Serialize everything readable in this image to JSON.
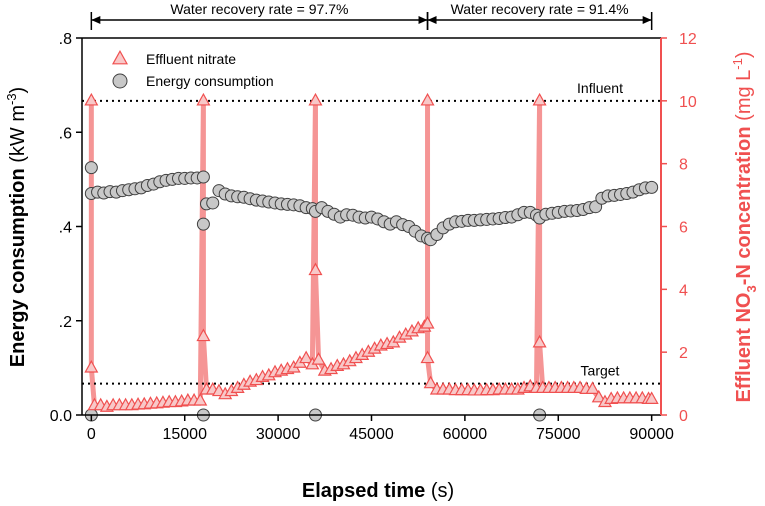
{
  "chart_data": {
    "type": "scatter",
    "xlabel": "Elapsed time",
    "xlabel_unit": "(s)",
    "ylabel_left": {
      "main": "Energy consumption",
      "unit_pre": "(kW m",
      "unit_sup": "-3",
      "unit_post": ")"
    },
    "ylabel_right": {
      "main": "Effluent NO",
      "sub": "3",
      "mid": "-N concentration",
      "unit_pre": "(mg L",
      "unit_sup": "-1",
      "unit_post": ")"
    },
    "xlim": [
      -1500,
      91500
    ],
    "ylim_left": [
      0,
      0.8
    ],
    "ylim_right": [
      0,
      12
    ],
    "x_ticks": [
      0,
      15000,
      30000,
      45000,
      60000,
      75000,
      90000
    ],
    "x_tick_labels": [
      "0",
      "15000",
      "30000",
      "45000",
      "60000",
      "75000",
      "90000"
    ],
    "y_left_ticks": [
      0,
      0.2,
      0.4,
      0.6,
      0.8
    ],
    "y_left_tick_labels": [
      "0.0",
      ".2",
      ".4",
      ".6",
      ".8"
    ],
    "y_right_ticks": [
      0,
      2,
      4,
      6,
      8,
      10,
      12
    ],
    "y_right_tick_labels": [
      "0",
      "2",
      "4",
      "6",
      "8",
      "10",
      "12"
    ],
    "reference_lines": [
      {
        "label": "Influent",
        "axis": "right",
        "y": 10
      },
      {
        "label": "Target",
        "axis": "right",
        "y": 1
      }
    ],
    "intervals": [
      {
        "label": "Water recovery rate = 97.7%",
        "x_start": 0,
        "x_end": 54000
      },
      {
        "label": "Water recovery rate = 91.4%",
        "x_start": 54000,
        "x_end": 90000
      }
    ],
    "legend": {
      "position": "top-left",
      "entries": [
        "Effluent nitrate",
        "Energy consumption"
      ]
    },
    "colors": {
      "nitrate": "#f05050",
      "nitrate_fill": "#f8c8c8",
      "nitrate_line": "#f48a8a",
      "energy_fill": "#c8c8c8",
      "energy_edge": "#404040"
    },
    "series": [
      {
        "name": "Energy consumption",
        "axis": "left",
        "marker": "circle",
        "points": [
          [
            0,
            0.0
          ],
          [
            0,
            0.525
          ],
          [
            0,
            0.47
          ],
          [
            1000,
            0.473
          ],
          [
            2000,
            0.471
          ],
          [
            3000,
            0.474
          ],
          [
            4000,
            0.473
          ],
          [
            5000,
            0.476
          ],
          [
            6000,
            0.478
          ],
          [
            7000,
            0.48
          ],
          [
            8000,
            0.482
          ],
          [
            9000,
            0.487
          ],
          [
            10000,
            0.49
          ],
          [
            11000,
            0.495
          ],
          [
            12000,
            0.498
          ],
          [
            13000,
            0.5
          ],
          [
            14000,
            0.502
          ],
          [
            15000,
            0.502
          ],
          [
            16000,
            0.503
          ],
          [
            17000,
            0.503
          ],
          [
            18000,
            0.505
          ],
          [
            18000,
            0.0
          ],
          [
            18000,
            0.405
          ],
          [
            18500,
            0.448
          ],
          [
            19500,
            0.45
          ],
          [
            20500,
            0.476
          ],
          [
            21500,
            0.469
          ],
          [
            22500,
            0.465
          ],
          [
            23500,
            0.463
          ],
          [
            24500,
            0.462
          ],
          [
            25500,
            0.459
          ],
          [
            26500,
            0.456
          ],
          [
            27500,
            0.454
          ],
          [
            28500,
            0.452
          ],
          [
            29500,
            0.45
          ],
          [
            30500,
            0.448
          ],
          [
            31500,
            0.447
          ],
          [
            32500,
            0.446
          ],
          [
            33500,
            0.444
          ],
          [
            34500,
            0.44
          ],
          [
            35500,
            0.438
          ],
          [
            36000,
            0.0
          ],
          [
            36000,
            0.432
          ],
          [
            37000,
            0.44
          ],
          [
            38000,
            0.432
          ],
          [
            39000,
            0.426
          ],
          [
            40000,
            0.42
          ],
          [
            41000,
            0.425
          ],
          [
            42000,
            0.424
          ],
          [
            43000,
            0.42
          ],
          [
            44000,
            0.418
          ],
          [
            45000,
            0.42
          ],
          [
            46000,
            0.416
          ],
          [
            47000,
            0.41
          ],
          [
            48000,
            0.405
          ],
          [
            49000,
            0.41
          ],
          [
            50000,
            0.404
          ],
          [
            51000,
            0.4
          ],
          [
            52000,
            0.39
          ],
          [
            53000,
            0.38
          ],
          [
            54000,
            0.375
          ],
          [
            54500,
            0.372
          ],
          [
            55500,
            0.383
          ],
          [
            56500,
            0.397
          ],
          [
            57500,
            0.405
          ],
          [
            58500,
            0.41
          ],
          [
            59500,
            0.411
          ],
          [
            60500,
            0.413
          ],
          [
            61500,
            0.413
          ],
          [
            62500,
            0.414
          ],
          [
            63500,
            0.415
          ],
          [
            64500,
            0.416
          ],
          [
            65500,
            0.417
          ],
          [
            66500,
            0.419
          ],
          [
            67500,
            0.42
          ],
          [
            68500,
            0.425
          ],
          [
            69500,
            0.43
          ],
          [
            70500,
            0.43
          ],
          [
            71500,
            0.424
          ],
          [
            72000,
            0.0
          ],
          [
            72000,
            0.418
          ],
          [
            73000,
            0.426
          ],
          [
            74000,
            0.428
          ],
          [
            75000,
            0.43
          ],
          [
            76000,
            0.432
          ],
          [
            77000,
            0.433
          ],
          [
            78000,
            0.434
          ],
          [
            79000,
            0.436
          ],
          [
            80000,
            0.44
          ],
          [
            81000,
            0.442
          ],
          [
            82000,
            0.46
          ],
          [
            83000,
            0.465
          ],
          [
            84000,
            0.466
          ],
          [
            85000,
            0.468
          ],
          [
            86000,
            0.47
          ],
          [
            87000,
            0.473
          ],
          [
            88000,
            0.478
          ],
          [
            89000,
            0.482
          ],
          [
            90000,
            0.483
          ]
        ]
      },
      {
        "name": "Effluent nitrate",
        "axis": "right",
        "marker": "triangle",
        "points": [
          [
            0,
            10.0
          ],
          [
            0,
            1.5
          ],
          [
            500,
            0.3
          ],
          [
            1500,
            0.3
          ],
          [
            2500,
            0.25
          ],
          [
            3500,
            0.3
          ],
          [
            4500,
            0.3
          ],
          [
            5500,
            0.3
          ],
          [
            6500,
            0.3
          ],
          [
            7500,
            0.32
          ],
          [
            8500,
            0.33
          ],
          [
            9500,
            0.35
          ],
          [
            10500,
            0.36
          ],
          [
            11500,
            0.38
          ],
          [
            12500,
            0.4
          ],
          [
            13500,
            0.4
          ],
          [
            14500,
            0.42
          ],
          [
            15500,
            0.45
          ],
          [
            16500,
            0.45
          ],
          [
            17500,
            0.45
          ],
          [
            18000,
            10.0
          ],
          [
            18000,
            2.5
          ],
          [
            18500,
            0.8
          ],
          [
            19500,
            0.8
          ],
          [
            20500,
            0.75
          ],
          [
            21500,
            0.65
          ],
          [
            22500,
            0.75
          ],
          [
            23500,
            0.85
          ],
          [
            24500,
            0.95
          ],
          [
            25500,
            1.05
          ],
          [
            26500,
            1.1
          ],
          [
            27500,
            1.2
          ],
          [
            28500,
            1.25
          ],
          [
            29500,
            1.35
          ],
          [
            30500,
            1.4
          ],
          [
            31500,
            1.45
          ],
          [
            32500,
            1.5
          ],
          [
            33500,
            1.65
          ],
          [
            34500,
            1.8
          ],
          [
            35500,
            1.6
          ],
          [
            36000,
            10.0
          ],
          [
            36000,
            4.6
          ],
          [
            36500,
            1.75
          ],
          [
            37500,
            1.4
          ],
          [
            38500,
            1.45
          ],
          [
            39500,
            1.55
          ],
          [
            40500,
            1.6
          ],
          [
            41500,
            1.7
          ],
          [
            42500,
            1.8
          ],
          [
            43500,
            1.9
          ],
          [
            44500,
            2.0
          ],
          [
            45500,
            2.1
          ],
          [
            46500,
            2.2
          ],
          [
            47500,
            2.25
          ],
          [
            48500,
            2.3
          ],
          [
            49500,
            2.45
          ],
          [
            50500,
            2.55
          ],
          [
            51500,
            2.65
          ],
          [
            52500,
            2.75
          ],
          [
            53500,
            2.8
          ],
          [
            54000,
            2.9
          ],
          [
            54000,
            10.0
          ],
          [
            54000,
            1.8
          ],
          [
            54500,
            1.0
          ],
          [
            55500,
            0.8
          ],
          [
            56500,
            0.8
          ],
          [
            57500,
            0.8
          ],
          [
            58500,
            0.78
          ],
          [
            59500,
            0.78
          ],
          [
            60500,
            0.78
          ],
          [
            61500,
            0.77
          ],
          [
            62500,
            0.77
          ],
          [
            63500,
            0.78
          ],
          [
            64500,
            0.78
          ],
          [
            65500,
            0.8
          ],
          [
            66500,
            0.8
          ],
          [
            67500,
            0.8
          ],
          [
            68500,
            0.8
          ],
          [
            69500,
            0.85
          ],
          [
            70500,
            0.9
          ],
          [
            71500,
            0.85
          ],
          [
            72000,
            10.0
          ],
          [
            72000,
            2.3
          ],
          [
            72500,
            0.85
          ],
          [
            73500,
            0.85
          ],
          [
            74500,
            0.85
          ],
          [
            75500,
            0.85
          ],
          [
            76500,
            0.85
          ],
          [
            77500,
            0.85
          ],
          [
            78500,
            0.85
          ],
          [
            79500,
            0.82
          ],
          [
            80500,
            0.82
          ],
          [
            81500,
            0.55
          ],
          [
            82500,
            0.4
          ],
          [
            83500,
            0.5
          ],
          [
            84500,
            0.52
          ],
          [
            85500,
            0.52
          ],
          [
            86500,
            0.52
          ],
          [
            87500,
            0.52
          ],
          [
            88500,
            0.52
          ],
          [
            89500,
            0.5
          ],
          [
            90000,
            0.5
          ]
        ]
      }
    ]
  }
}
